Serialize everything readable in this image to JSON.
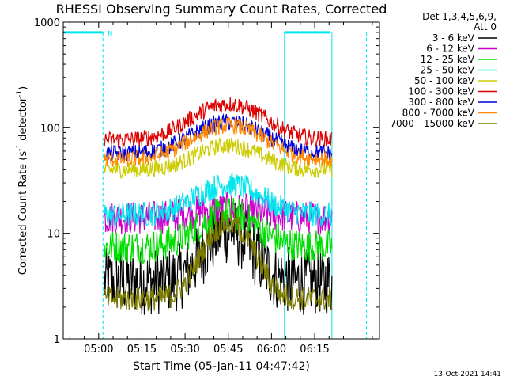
{
  "chart_data": {
    "type": "line",
    "title": "RHESSI Observing Summary Count Rates, Corrected",
    "xlabel": "Start Time (05-Jan-11 04:47:42)",
    "ylabel_main": "Corrected Count Rate (s",
    "ylabel_sup1": "-1",
    "ylabel_mid": " detector",
    "ylabel_sup2": "-1",
    "ylabel_end": ")",
    "yscale": "log",
    "ylim": [
      1,
      1000
    ],
    "y_ticks": [
      {
        "value": 1,
        "label": "1"
      },
      {
        "value": 10,
        "label": "10"
      },
      {
        "value": 100,
        "label": "100"
      },
      {
        "value": 1000,
        "label": "1000"
      }
    ],
    "x_range_min": [
      287.7,
      397.5
    ],
    "x_ticks": [
      {
        "value": 300,
        "label": "05:00"
      },
      {
        "value": 315,
        "label": "05:15"
      },
      {
        "value": 330,
        "label": "05:30"
      },
      {
        "value": 345,
        "label": "05:45"
      },
      {
        "value": 360,
        "label": "06:00"
      },
      {
        "value": 375,
        "label": "06:15"
      }
    ],
    "legend_header": [
      "Det 1,3,4,5,6,9,",
      "Att 0"
    ],
    "legend_placement": "top-right outside",
    "data_start_min": 302,
    "data_end_min": 381,
    "peak_min": 345,
    "series": [
      {
        "name": "3 - 6 keV",
        "color": "#000000",
        "base": 3.5,
        "peak": 10.5,
        "width": 7,
        "noise": 0.08
      },
      {
        "name": "6 - 12 keV",
        "color": "#cc00cc",
        "base": 14,
        "peak": 17,
        "width": 11,
        "noise": 0.04
      },
      {
        "name": "12 - 25 keV",
        "color": "#00dd00",
        "base": 7.5,
        "peak": 15.5,
        "width": 9,
        "noise": 0.04
      },
      {
        "name": "25 - 50 keV",
        "color": "#00e5ee",
        "base": 15,
        "peak": 29,
        "width": 10,
        "noise": 0.03
      },
      {
        "name": "50 - 100 keV",
        "color": "#cccc00",
        "base": 40,
        "peak": 68,
        "width": 10,
        "noise": 0.02
      },
      {
        "name": "100 - 300 keV",
        "color": "#dd0000",
        "base": 77,
        "peak": 168,
        "width": 11,
        "noise": 0.02
      },
      {
        "name": "300 - 800 keV",
        "color": "#0000dd",
        "base": 57,
        "peak": 113,
        "width": 11,
        "noise": 0.02
      },
      {
        "name": "800 - 7000 keV",
        "color": "#ff8800",
        "base": 50,
        "peak": 105,
        "width": 11,
        "noise": 0.02
      },
      {
        "name": "7000 - 15000 keV",
        "color": "#7b7b00",
        "base": 2.4,
        "peak": 12.5,
        "width": 7,
        "noise": 0.03
      }
    ],
    "flags": [
      {
        "label": "N",
        "start_min": 287.7,
        "end_min": 301.5,
        "level": 800,
        "color": "#00e5ee"
      },
      {
        "label": "",
        "start_min": 364.5,
        "end_min": 380.5,
        "level": 800,
        "color": "#00e5ee"
      }
    ],
    "vlines_solid": [
      287.7,
      364.5,
      381
    ],
    "vlines_dashed": [
      301.5,
      393
    ],
    "timestamp": "13-Oct-2021 14:41"
  }
}
